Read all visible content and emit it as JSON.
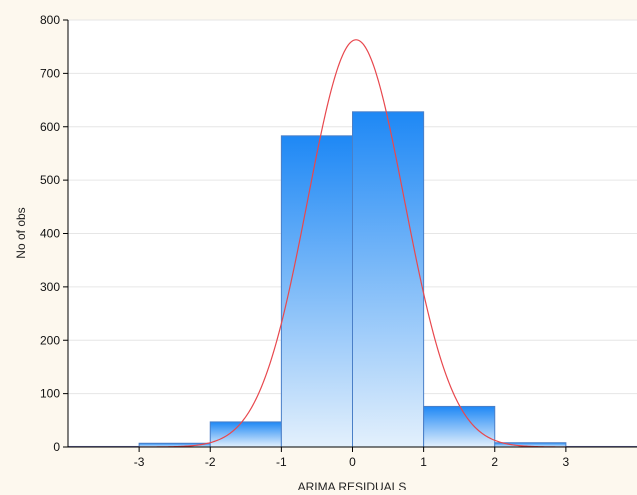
{
  "chart_data": {
    "type": "bar",
    "xlabel": "ARIMA RESIDUALS",
    "ylabel": "No of obs",
    "xlim": [
      -4,
      4
    ],
    "ylim": [
      0,
      800
    ],
    "xticks": [
      -3,
      -2,
      -1,
      0,
      1,
      2,
      3
    ],
    "yticks": [
      0,
      100,
      200,
      300,
      400,
      500,
      600,
      700,
      800
    ],
    "bins": [
      {
        "from": -4,
        "to": -3,
        "value": 1
      },
      {
        "from": -3,
        "to": -2,
        "value": 7
      },
      {
        "from": -2,
        "to": -1,
        "value": 47
      },
      {
        "from": -1,
        "to": 0,
        "value": 583
      },
      {
        "from": 0,
        "to": 1,
        "value": 628
      },
      {
        "from": 1,
        "to": 2,
        "value": 76
      },
      {
        "from": 2,
        "to": 3,
        "value": 8
      },
      {
        "from": 3,
        "to": 4,
        "value": 1
      }
    ],
    "normal_curve": {
      "mean": 0.05,
      "sd": 0.68,
      "peak": 763,
      "color": "#e8484e"
    },
    "bar_color_top": "#1e88f5",
    "bar_color_bottom": "#e3f0fc",
    "bar_edge_color": "#4a7fc7",
    "grid": true
  }
}
